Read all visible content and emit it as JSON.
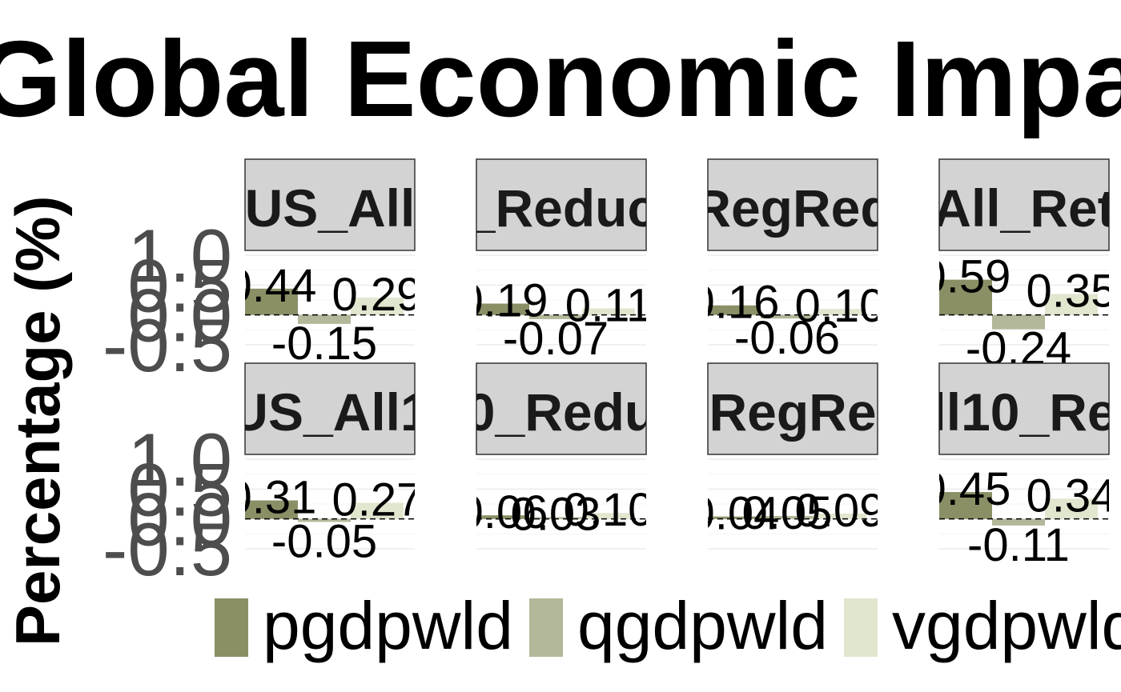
{
  "chart_data": {
    "type": "bar",
    "title": "Global Economic Impact",
    "xlabel": "",
    "ylabel": "Percentage (%)",
    "ylim": [
      -0.5,
      1.0
    ],
    "yticks": [
      "1.0",
      "0.5",
      "0.0",
      "-0.5"
    ],
    "grid": true,
    "legend_position": "bottom",
    "series_names": [
      "pgdpwld",
      "qgdpwld",
      "vgdpwld"
    ],
    "colors": [
      "#8b8f66",
      "#b2b899",
      "#e1e6cf"
    ],
    "panels": [
      {
        "label": "US_All",
        "values": [
          0.44,
          -0.15,
          0.29
        ],
        "value_labels": [
          "0.44",
          "-0.15",
          "0.29"
        ]
      },
      {
        "label": "_Reduc",
        "values": [
          0.19,
          -0.07,
          0.11
        ],
        "value_labels": [
          "0.19",
          "-0.07",
          "0.11"
        ]
      },
      {
        "label": "RegRed",
        "values": [
          0.16,
          -0.06,
          0.1
        ],
        "value_labels": [
          "0.16",
          "-0.06",
          "0.10"
        ]
      },
      {
        "label": "All_Ret",
        "values": [
          0.59,
          -0.24,
          0.35
        ],
        "value_labels": [
          "0.59",
          "-0.24",
          "0.35"
        ]
      },
      {
        "label": "US_All1",
        "values": [
          0.31,
          -0.05,
          0.27
        ],
        "value_labels": [
          "0.31",
          "-0.05",
          "0.27"
        ]
      },
      {
        "label": "0_Redu",
        "values": [
          0.06,
          0.03,
          0.1
        ],
        "value_labels": [
          "0.06",
          "0.03",
          "0.10"
        ]
      },
      {
        "label": "RegRe",
        "values": [
          0.04,
          0.05,
          0.09
        ],
        "value_labels": [
          "0.04",
          "0.05",
          "0.09"
        ]
      },
      {
        "label": "ll10_Re",
        "values": [
          0.45,
          -0.11,
          0.34
        ],
        "value_labels": [
          "0.45",
          "-0.11",
          "0.34"
        ]
      }
    ]
  }
}
